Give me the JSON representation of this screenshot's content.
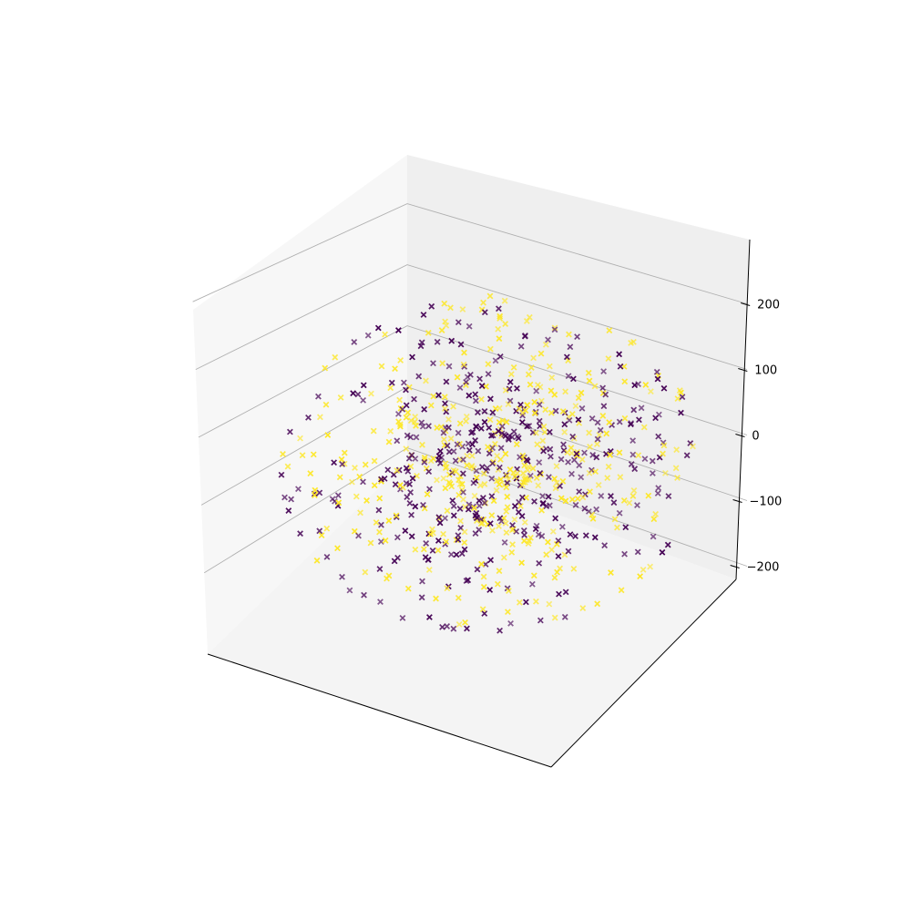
{
  "chart_data": {
    "type": "scatter",
    "projection": "3d",
    "marker": "x",
    "title": "",
    "xlabel": "",
    "ylabel": "",
    "zlabel": "",
    "grid": true,
    "pane_color": "#f2f2f2",
    "colormap": "viridis",
    "color_levels": [
      "#440154",
      "#fde725"
    ],
    "z_axis": {
      "ticks": [
        200,
        100,
        0,
        -100,
        -200
      ],
      "tick_labels": [
        "200",
        "100",
        "0",
        "−100",
        "−200"
      ],
      "range": [
        -220,
        280
      ]
    },
    "x_axis": {
      "tick_labels": []
    },
    "y_axis": {
      "tick_labels": []
    },
    "points": {
      "count": 800,
      "distribution": "approximately normal, centered near the origin",
      "stddev_estimate": [
        100,
        100,
        100
      ],
      "value_range_estimate": [
        -230,
        230
      ],
      "color_classes": [
        0,
        1
      ],
      "outlier": {
        "x": 0,
        "y": 0,
        "z": 250
      }
    }
  }
}
